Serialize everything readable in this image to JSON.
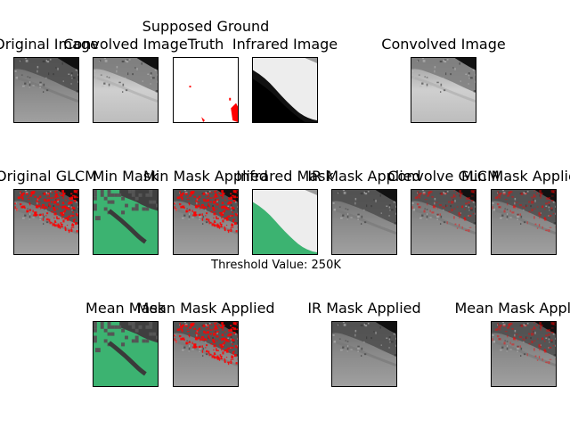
{
  "figure": {
    "threshold_label": "Threshold Value: 250K",
    "panels": [
      {
        "id": "r1c1",
        "title": "Original Image",
        "kind": "gray"
      },
      {
        "id": "r1c2",
        "title": "Convolved Image",
        "kind": "bright"
      },
      {
        "id": "r1c3",
        "title": "Supposed Ground Truth",
        "title_line1": "Supposed Ground",
        "title_line2": "Truth",
        "kind": "truth"
      },
      {
        "id": "r1c4",
        "title": "Infrared Image",
        "kind": "ir"
      },
      {
        "id": "r1c6",
        "title": "Convolved Image",
        "kind": "bright"
      },
      {
        "id": "r2c1",
        "title": "Original GLCM",
        "kind": "red"
      },
      {
        "id": "r2c2",
        "title": "Min Mask",
        "kind": "green"
      },
      {
        "id": "r2c3",
        "title": "Min Mask Applied",
        "kind": "red"
      },
      {
        "id": "r2c4",
        "title": "Infrared Mask",
        "kind": "irgreen"
      },
      {
        "id": "r2c5",
        "title": "IR Mask Applied",
        "kind": "gray"
      },
      {
        "id": "r2c6",
        "title": "Convolve GLCM",
        "kind": "redlight"
      },
      {
        "id": "r2c7",
        "title": "Min Mask Applied",
        "kind": "redlight"
      },
      {
        "id": "r3c2",
        "title": "Mean Mask",
        "kind": "green"
      },
      {
        "id": "r3c3",
        "title": "Mean Mask Applied",
        "kind": "red"
      },
      {
        "id": "r3c5",
        "title": "IR Mask Applied",
        "kind": "gray"
      },
      {
        "id": "r3c7",
        "title": "Mean Mask Applied",
        "kind": "redlight"
      }
    ]
  },
  "colors": {
    "mask_green": "#3cb371",
    "overlay_red": "#ff0000",
    "rock_dark": "#2a2a2a",
    "rock_light": "#b0b0b0"
  }
}
